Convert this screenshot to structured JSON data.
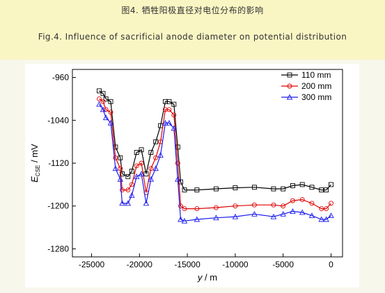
{
  "caption": {
    "chinese": "图4. 牺牲阳极直径对电位分布的影响",
    "english": "Fig.4. Influence of sacrificial anode diameter on potential distribution"
  },
  "chart_data": {
    "type": "line",
    "xlabel": "y / m",
    "ylabel": "E_CSE / mV",
    "ylabel_main": "E",
    "ylabel_sub": "CSE",
    "ylabel_unit": " / mV",
    "xlabel_var": "y",
    "xlabel_unit": " / m",
    "xlim": [
      -27000,
      1200
    ],
    "ylim": [
      -1295,
      -945
    ],
    "xticks": [
      -25000,
      -20000,
      -15000,
      -10000,
      -5000,
      0
    ],
    "xtick_labels": [
      "-25000",
      "-20000",
      "-15000",
      "-10000",
      "-5000",
      "0"
    ],
    "yticks": [
      -960,
      -1040,
      -1120,
      -1200,
      -1280
    ],
    "ytick_labels": [
      "-960",
      "-1040",
      "-1120",
      "-1200",
      "-1280"
    ],
    "legend_position": "top-right",
    "series": [
      {
        "name": "110 mm",
        "color": "#000000",
        "marker": "square",
        "x": [
          -24200,
          -23800,
          -23500,
          -23000,
          -22500,
          -22000,
          -21800,
          -21200,
          -20800,
          -20300,
          -19800,
          -19300,
          -18800,
          -18300,
          -17800,
          -17300,
          -16900,
          -16400,
          -16000,
          -15700,
          -15300,
          -14000,
          -12000,
          -10000,
          -8000,
          -6000,
          -5000,
          -4000,
          -3000,
          -2000,
          -1000,
          -500,
          0
        ],
        "values": [
          -985,
          -990,
          -1000,
          -1005,
          -1090,
          -1110,
          -1140,
          -1145,
          -1135,
          -1100,
          -1095,
          -1140,
          -1100,
          -1080,
          -1050,
          -1005,
          -1005,
          -1010,
          -1090,
          -1155,
          -1170,
          -1170,
          -1168,
          -1166,
          -1165,
          -1168,
          -1168,
          -1162,
          -1160,
          -1165,
          -1170,
          -1170,
          -1160
        ]
      },
      {
        "name": "200 mm",
        "color": "#e00000",
        "marker": "circle",
        "x": [
          -24200,
          -23800,
          -23500,
          -23000,
          -22500,
          -22000,
          -21800,
          -21200,
          -20800,
          -20300,
          -19800,
          -19300,
          -18800,
          -18300,
          -17800,
          -17300,
          -16900,
          -16400,
          -16000,
          -15700,
          -15300,
          -14000,
          -12000,
          -10000,
          -8000,
          -6000,
          -5000,
          -4000,
          -3000,
          -2000,
          -1000,
          -500,
          0
        ],
        "values": [
          -1000,
          -1005,
          -1020,
          -1025,
          -1110,
          -1130,
          -1170,
          -1170,
          -1160,
          -1125,
          -1120,
          -1175,
          -1130,
          -1110,
          -1080,
          -1020,
          -1020,
          -1030,
          -1120,
          -1200,
          -1205,
          -1205,
          -1203,
          -1200,
          -1198,
          -1198,
          -1200,
          -1190,
          -1188,
          -1195,
          -1205,
          -1205,
          -1195
        ]
      },
      {
        "name": "300 mm",
        "color": "#1a1aee",
        "marker": "triangle",
        "x": [
          -24200,
          -23800,
          -23500,
          -23000,
          -22500,
          -22000,
          -21800,
          -21200,
          -20800,
          -20300,
          -19800,
          -19300,
          -18800,
          -18300,
          -17800,
          -17300,
          -16900,
          -16400,
          -16000,
          -15700,
          -15300,
          -14000,
          -12000,
          -10000,
          -8000,
          -6000,
          -5000,
          -4000,
          -3000,
          -2000,
          -1000,
          -500,
          0
        ],
        "values": [
          -1010,
          -1020,
          -1035,
          -1045,
          -1130,
          -1150,
          -1195,
          -1195,
          -1180,
          -1145,
          -1140,
          -1195,
          -1150,
          -1130,
          -1105,
          -1045,
          -1045,
          -1055,
          -1150,
          -1225,
          -1228,
          -1225,
          -1222,
          -1220,
          -1215,
          -1220,
          -1215,
          -1210,
          -1212,
          -1218,
          -1225,
          -1225,
          -1218
        ]
      }
    ]
  }
}
